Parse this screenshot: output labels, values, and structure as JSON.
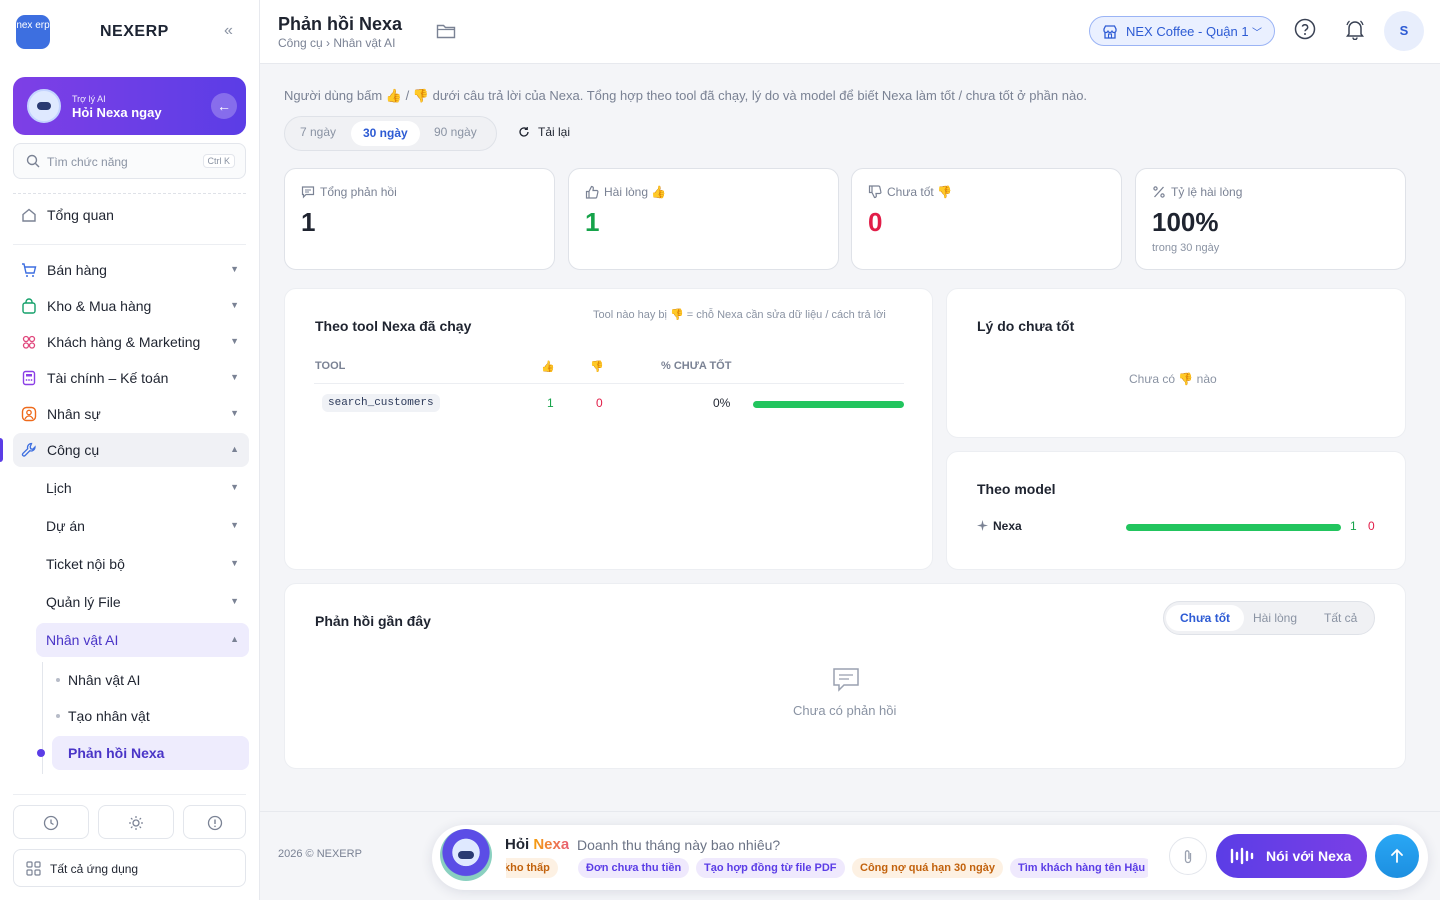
{
  "app": {
    "brand_logo_text": "nex erp",
    "brand_name": "NEXERP",
    "collapse_icon": "double-chevron-left-icon"
  },
  "assistant_card": {
    "subtitle": "Trợ lý AI",
    "title": "Hỏi Nexa ngay"
  },
  "search": {
    "placeholder": "Tìm chức năng",
    "shortcut": "Ctrl K"
  },
  "sidebar": {
    "overview": "Tổng quan",
    "groups": [
      {
        "label": "Bán hàng",
        "icon": "cart-icon",
        "color": "#3d6fe0"
      },
      {
        "label": "Kho & Mua hàng",
        "icon": "bag-icon",
        "color": "#14a06a"
      },
      {
        "label": "Khách hàng & Marketing",
        "icon": "people-icon",
        "color": "#e0457b"
      },
      {
        "label": "Tài chính – Kế toán",
        "icon": "calculator-icon",
        "color": "#8b3fe6"
      },
      {
        "label": "Nhân sự",
        "icon": "user-circle-icon",
        "color": "#ee6a1b"
      },
      {
        "label": "Công cụ",
        "icon": "wrench-icon",
        "color": "#3d6fe0"
      }
    ],
    "tools_sub": [
      "Lịch",
      "Dự án",
      "Ticket nội bộ",
      "Quản lý File",
      "Nhân vật AI"
    ],
    "ai_leaves": [
      "Nhân vật AI",
      "Tạo nhân vật",
      "Phản hồi Nexa"
    ],
    "all_apps": "Tất cả ứng dụng",
    "footer_icons": [
      "history-icon",
      "sun-icon",
      "alert-circle-icon"
    ]
  },
  "header": {
    "title": "Phản hồi Nexa",
    "breadcrumb": "Công cụ › Nhân vật AI",
    "branch": "NEX Coffee - Quận 1",
    "avatar_initial": "S"
  },
  "intro": "Người dùng bấm 👍 / 👎 dưới câu trả lời của Nexa. Tổng hợp theo tool đã chạy, lý do và model để biết Nexa làm tốt / chưa tốt ở phần nào.",
  "range": {
    "options": [
      "7 ngày",
      "30 ngày",
      "90 ngày"
    ],
    "selected": "30 ngày",
    "reload": "Tải lại"
  },
  "stats": [
    {
      "label": "Tổng phản hồi",
      "value": "1",
      "icon": "message-square-icon",
      "color": "#1f2430"
    },
    {
      "label": "Hài lòng 👍",
      "value": "1",
      "icon": "thumbs-up-icon",
      "color": "#16a34a"
    },
    {
      "label": "Chưa tốt 👎",
      "value": "0",
      "icon": "thumbs-down-icon",
      "color": "#e11d48"
    },
    {
      "label": "Tỷ lệ hài lòng",
      "value": "100%",
      "note": "trong 30 ngày",
      "icon": "percent-icon",
      "color": "#1f2430"
    }
  ],
  "tool_table": {
    "title": "Theo tool Nexa đã chạy",
    "hint": "Tool nào hay bị 👎 = chỗ Nexa cần sửa dữ liệu / cách trả lời",
    "headers": [
      "TOOL",
      "👍",
      "👎",
      "% CHƯA TỐT"
    ],
    "rows": [
      {
        "tool": "search_customers",
        "up": "1",
        "down": "0",
        "pct_bad": "0%",
        "satisfaction": 1.0
      }
    ]
  },
  "reasons": {
    "title": "Lý do chưa tốt",
    "empty": "Chưa có 👎 nào"
  },
  "models": {
    "title": "Theo model",
    "rows": [
      {
        "name": "Nexa",
        "up": "1",
        "down": "0",
        "satisfaction": 1.0
      }
    ]
  },
  "recent": {
    "title": "Phản hồi gần đây",
    "filters": [
      "Chưa tốt",
      "Hài lòng",
      "Tất cả"
    ],
    "selected": "Chưa tốt",
    "empty": "Chưa có phản hồi"
  },
  "footer": {
    "copyright": "2026 © NEXERP",
    "ask_prefix": "Hỏi",
    "ask_name": "Nexa",
    "ask_question": "Doanh thu tháng này bao nhiêu?",
    "chips": [
      "kho thấp",
      "Đơn chưa thu tiền",
      "Tạo hợp đồng từ file PDF",
      "Công nợ quá hạn 30 ngày",
      "Tìm khách hàng tên Hậu"
    ],
    "voice_label": "Nói với Nexa"
  }
}
